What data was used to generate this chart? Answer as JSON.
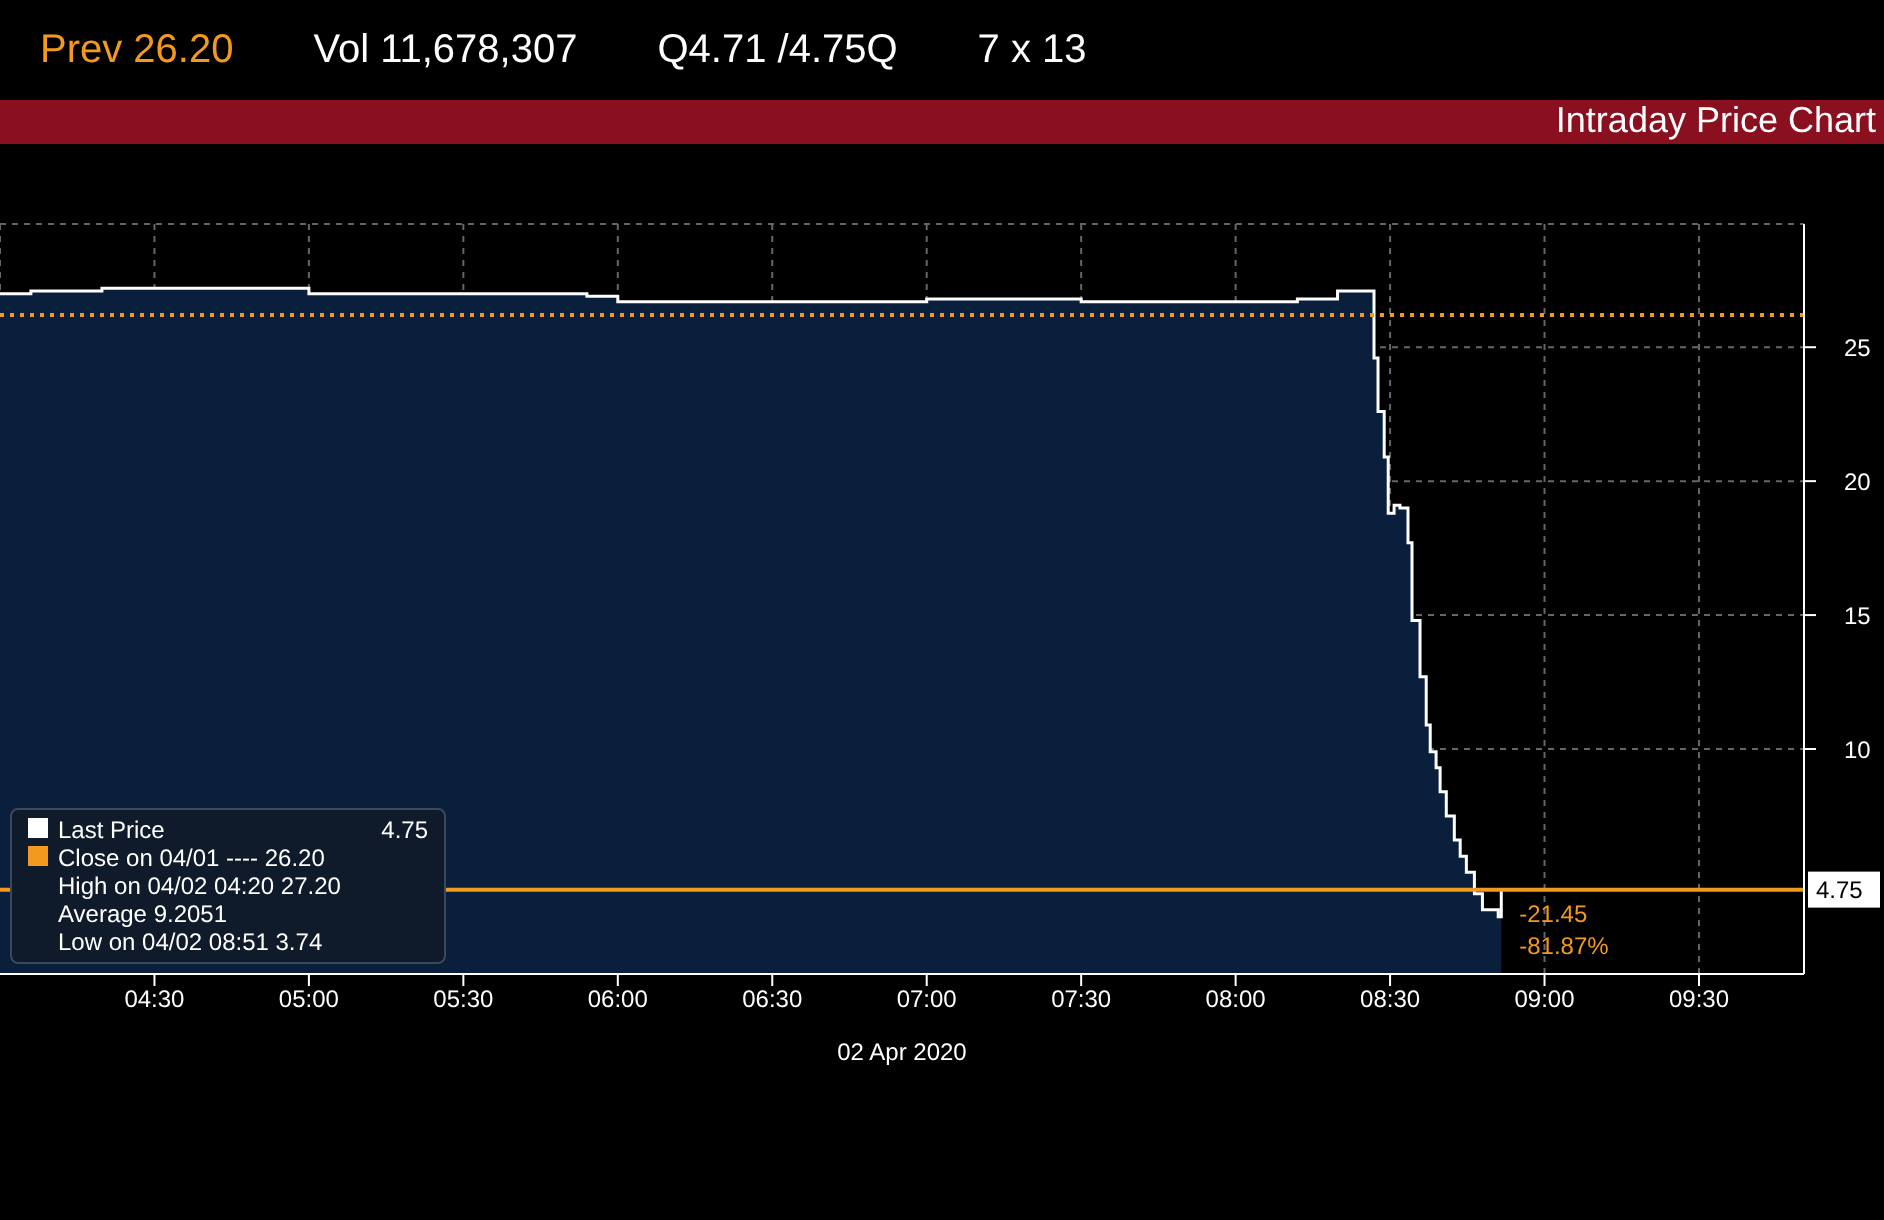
{
  "chart_data": {
    "type": "area",
    "title": "Intraday Price Chart",
    "xlabel": "02 Apr 2020",
    "annotations": [
      "Prev 26.20",
      "Vol 11,678,307",
      "Q4.71 /4.75Q",
      "7 x 13",
      "4.75",
      "High on 04/02 04:20 27.20",
      "Average 9.2051",
      "Low on 04/02 08:51 3.74",
      {
        "text": "-21.45",
        "x": 8.86,
        "y": 4.75
      },
      {
        "text": "-81.87%",
        "x": 8.86,
        "y": 4.75
      }
    ],
    "series": [
      {
        "name": "Last Price",
        "color": "#ffffff",
        "x": [
          4.0,
          4.1,
          4.33,
          5.0,
          5.5,
          5.9,
          6.0,
          6.5,
          7.0,
          7.5,
          8.0,
          8.2,
          8.33,
          8.429,
          8.448,
          8.461,
          8.481,
          8.494,
          8.513,
          8.532,
          8.558,
          8.571,
          8.597,
          8.617,
          8.63,
          8.649,
          8.662,
          8.682,
          8.708,
          8.727,
          8.747,
          8.773,
          8.799,
          8.85,
          8.86
        ],
        "values": [
          27.0,
          27.1,
          27.2,
          27.0,
          27.0,
          26.9,
          26.7,
          26.7,
          26.8,
          26.7,
          26.7,
          26.8,
          27.1,
          27.1,
          24.6,
          22.6,
          20.9,
          18.8,
          19.1,
          19.0,
          17.7,
          14.8,
          12.7,
          10.9,
          9.9,
          9.3,
          8.4,
          7.5,
          6.6,
          6.0,
          5.4,
          4.6,
          4.0,
          3.74,
          4.75
        ]
      }
    ],
    "xlim": [
      4.0,
      9.84
    ],
    "xticks": [
      {
        "value": 4.5,
        "label": "04:30"
      },
      {
        "value": 5,
        "label": "05:00"
      },
      {
        "value": 5.5,
        "label": "05:30"
      },
      {
        "value": 6,
        "label": "06:00"
      },
      {
        "value": 6.5,
        "label": "06:30"
      },
      {
        "value": 7,
        "label": "07:00"
      },
      {
        "value": 7.5,
        "label": "07:30"
      },
      {
        "value": 8,
        "label": "08:00"
      },
      {
        "value": 8.5,
        "label": "08:30"
      },
      {
        "value": 9,
        "label": "09:00"
      },
      {
        "value": 9.5,
        "label": "09:30"
      }
    ],
    "ylim": [
      1.6,
      29.6
    ],
    "yticks": [
      10,
      15,
      20,
      25
    ],
    "ref_lines": [
      {
        "axis": "y",
        "value": 26.2,
        "label": "Close on 04/01 ---- 26.20",
        "color": "#f39a1e",
        "line_style": "dotted"
      },
      {
        "axis": "y",
        "value": 4.75,
        "label": "4.75",
        "color": "#f39a1e",
        "line_style": "solid"
      }
    ],
    "grid": true,
    "legend": "bottom left"
  }
}
